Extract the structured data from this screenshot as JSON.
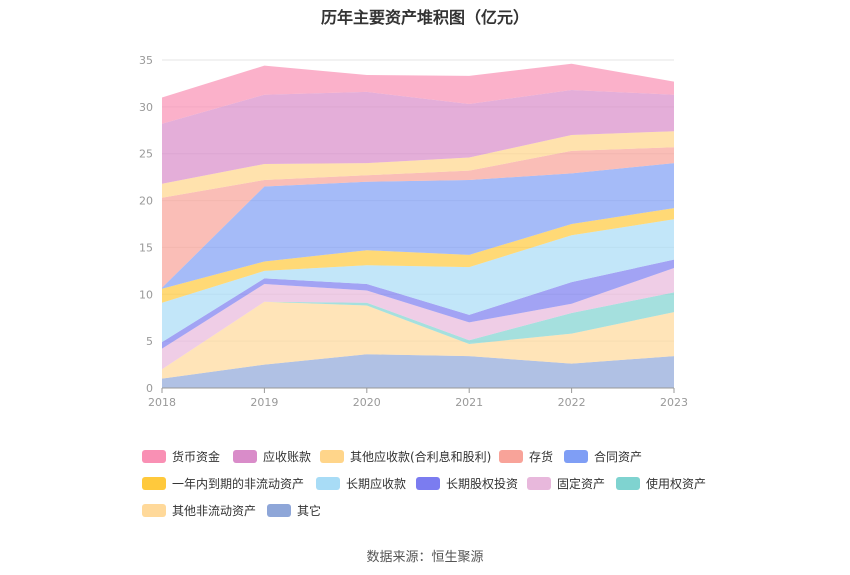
{
  "chart_data": {
    "type": "area",
    "stacked": true,
    "title": "历年主要资产堆积图（亿元）",
    "x": [
      "2018",
      "2019",
      "2020",
      "2021",
      "2022",
      "2023"
    ],
    "yticks": [
      "0",
      "5",
      "10",
      "15",
      "20",
      "25",
      "30",
      "35"
    ],
    "ylim": [
      0,
      35
    ],
    "grid": true,
    "legend_position": "bottom",
    "series": [
      {
        "name": "其它",
        "color": "#8ea6d8",
        "values": [
          1.0,
          2.5,
          3.6,
          3.4,
          2.6,
          3.4
        ]
      },
      {
        "name": "其他非流动资产",
        "color": "#ffd99a",
        "values": [
          1.0,
          6.7,
          5.2,
          1.3,
          3.2,
          4.7
        ]
      },
      {
        "name": "使用权资产",
        "color": "#7fd3d0",
        "values": [
          0.0,
          0.0,
          0.3,
          0.4,
          2.2,
          2.1
        ]
      },
      {
        "name": "固定资产",
        "color": "#e8b8dc",
        "values": [
          2.2,
          1.9,
          1.3,
          1.9,
          1.0,
          2.6
        ]
      },
      {
        "name": "长期股权投资",
        "color": "#7b7cf0",
        "values": [
          0.7,
          0.6,
          0.7,
          0.8,
          2.3,
          0.9
        ]
      },
      {
        "name": "长期应收款",
        "color": "#a8dcf6",
        "values": [
          4.2,
          0.8,
          2.0,
          5.1,
          5.0,
          4.3
        ]
      },
      {
        "name": "一年内到期的非流动资产",
        "color": "#ffc93c",
        "values": [
          1.5,
          1.0,
          1.6,
          1.3,
          1.2,
          1.2
        ]
      },
      {
        "name": "合同资产",
        "color": "#7f9ef5",
        "values": [
          0.1,
          8.0,
          7.3,
          8.0,
          5.4,
          4.8
        ]
      },
      {
        "name": "存货",
        "color": "#f8a399",
        "values": [
          9.6,
          0.7,
          0.7,
          1.0,
          2.4,
          1.7
        ]
      },
      {
        "name": "其他应收款(合利息和股利)",
        "color": "#ffd58a",
        "values": [
          1.5,
          1.7,
          1.3,
          1.4,
          1.7,
          1.7
        ]
      },
      {
        "name": "应收账款",
        "color": "#d98cc9",
        "values": [
          6.4,
          7.4,
          7.6,
          5.7,
          4.8,
          3.9
        ]
      },
      {
        "name": "货币资金",
        "color": "#f990b4",
        "values": [
          2.8,
          3.1,
          1.8,
          3.0,
          2.8,
          1.4
        ]
      }
    ],
    "source": "数据来源：恒生聚源"
  },
  "legend_order": [
    [
      {
        "label": "货币资金",
        "color": "#f990b4"
      },
      {
        "label": "应收账款",
        "color": "#d98cc9"
      },
      {
        "label": "其他应收款(合利息和股利)",
        "color": "#ffd58a"
      },
      {
        "label": "存货",
        "color": "#f8a399"
      },
      {
        "label": "合同资产",
        "color": "#7f9ef5"
      }
    ],
    [
      {
        "label": "一年内到期的非流动资产",
        "color": "#ffc93c"
      },
      {
        "label": "长期应收款",
        "color": "#a8dcf6"
      },
      {
        "label": "长期股权投资",
        "color": "#7b7cf0"
      },
      {
        "label": "固定资产",
        "color": "#e8b8dc"
      },
      {
        "label": "使用权资产",
        "color": "#7fd3d0"
      }
    ],
    [
      {
        "label": "其他非流动资产",
        "color": "#ffd99a"
      },
      {
        "label": "其它",
        "color": "#8ea6d8"
      }
    ]
  ]
}
